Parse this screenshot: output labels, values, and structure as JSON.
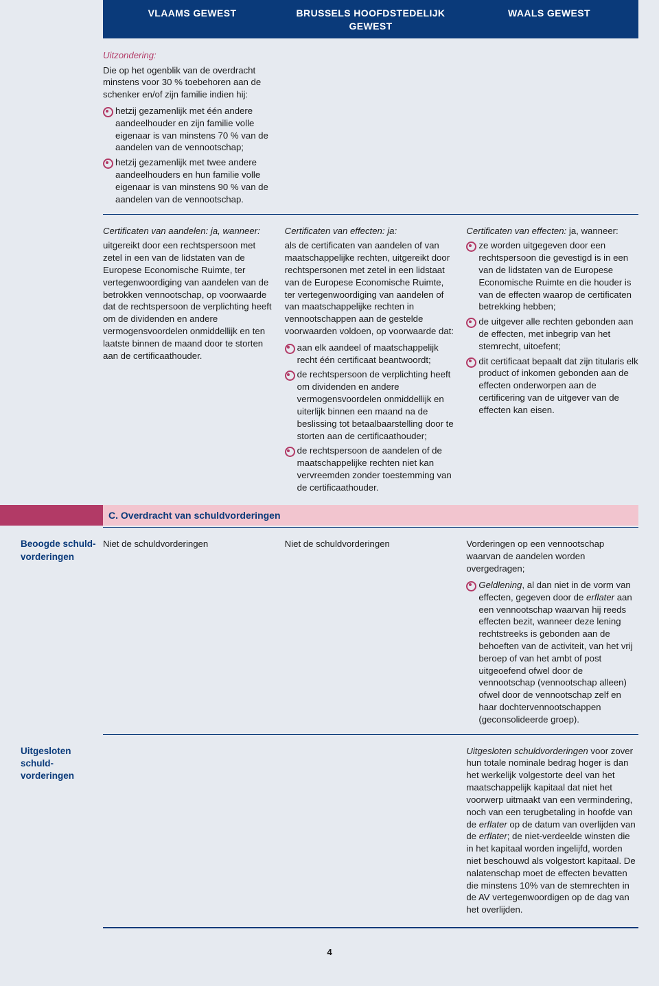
{
  "colors": {
    "page_bg": "#e6eaf0",
    "header_bg": "#0a3a7a",
    "header_text": "#ffffff",
    "accent_rose": "#b23a66",
    "band_pink": "#f2c5cf",
    "text": "#1a1a1a"
  },
  "headers": {
    "col1": "VLAAMS GEWEST",
    "col2": "BRUSSELS HOOFDSTEDELIJK GEWEST",
    "col3": "WAALS GEWEST"
  },
  "block1": {
    "exception_label": "Uitzondering:",
    "intro": "Die op het ogenblik van de overdracht minstens voor 30 % toebehoren aan de schenker en/of zijn familie indien hij:",
    "bullets": [
      "hetzij gezamenlijk met één andere aandeelhouder en zijn familie volle eigenaar is van minstens 70 % van de aandelen van de vennootschap;",
      "hetzij gezamenlijk met twee andere aandeelhouders en hun familie volle eigenaar is van minstens 90 % van de aandelen van de vennootschap."
    ]
  },
  "block2": {
    "col1": {
      "title": "Certificaten van aandelen: ja, wanneer:",
      "text": "uitgereikt door een rechtspersoon met zetel in een van de lidstaten van de Europese Economische Ruimte, ter vertegenwoordiging van aandelen van de betrokken vennootschap, op voorwaarde dat de rechtspersoon de verplichting heeft om de dividenden en andere vermogensvoordelen onmiddellijk en ten laatste binnen de maand door te storten aan de certificaathouder."
    },
    "col2": {
      "title": "Certificaten van effecten: ja:",
      "intro": "als de certificaten van aandelen of van maatschappelijke rechten, uitgereikt door rechtspersonen met zetel in een lidstaat van de Europese Economische Ruimte, ter vertegenwoordiging van aandelen of van maatschappelijke rechten in vennootschappen aan de gestelde voorwaarden voldoen, op voorwaarde dat:",
      "bullets": [
        "aan elk aandeel of maatschappelijk recht één certificaat beantwoordt;",
        "de rechtspersoon de verplichting heeft om dividenden en andere vermogensvoordelen onmiddellijk en uiterlijk binnen een maand na de beslissing tot betaalbaarstelling door te storten aan de certificaathouder;",
        "de rechtspersoon de aandelen of de maatschappelijke rechten niet kan vervreemden zonder toestemming van de certificaathouder."
      ]
    },
    "col3": {
      "title_prefix": "Certificaten van effecten:",
      "title_suffix": " ja, wanneer:",
      "bullets": [
        "ze worden uitgegeven door een rechtspersoon die gevestigd is in een van de lidstaten van de Europese Economische Ruimte en die houder is van de effecten waarop de certificaten betrekking hebben;",
        "de uitgever alle rechten gebonden aan de effecten, met inbegrip van het stemrecht, uitoefent;",
        "dit certificaat bepaalt dat zijn titularis elk product of inkomen gebonden aan de effecten onderworpen aan de certificering van de uitgever van de effecten kan eisen."
      ]
    }
  },
  "sectionC": {
    "title": "C. Overdracht van schuldvorderingen"
  },
  "rowBeoogde": {
    "lead": "Beoogde schuld­vorderingen",
    "c1": "Niet de schuldvorderingen",
    "c2": "Niet de schuldvorderingen",
    "c3_intro": "Vorderingen op een vennootschap waarvan de aandelen worden overgedragen;",
    "c3_bullet_prefix": "Geldlening",
    "c3_bullet_rest": ", al dan niet in de vorm van effecten, gegeven door de ",
    "c3_bullet_em": "erflater",
    "c3_bullet_tail": " aan een vennootschap waarvan hij reeds effecten bezit, wanneer deze lening rechtstreeks is gebonden aan de behoeften van de activiteit, van het vrij beroep of van het ambt of post uitgeoefend ofwel door de vennootschap (vennootschap alleen) ofwel door de vennootschap zelf en haar dochtervennootschappen (geconsolideerde groep)."
  },
  "rowUitgesloten": {
    "lead": "Uitgesloten schuld­vorderingen",
    "c3_em1": "Uitgesloten schuldvorderingen",
    "c3_p1": " voor zover hun totale nominale bedrag hoger is dan het werkelijk volgestorte deel van het maatschappelijk kapitaal dat niet het voorwerp uitmaakt van een vermindering, noch van een terugbetaling in hoofde van de ",
    "c3_em2": "erflater",
    "c3_p2": " op de datum van overlijden van de ",
    "c3_em3": "erflater",
    "c3_p3": "; de niet-verdeelde winsten die in het kapitaal worden ingelijfd, worden niet beschouwd als volgestort kapitaal. De nalatenschap moet de effecten bevatten die minstens 10% van de stemrechten in de AV vertegenwoordigen op de dag van het overlijden."
  },
  "page_number": "4"
}
